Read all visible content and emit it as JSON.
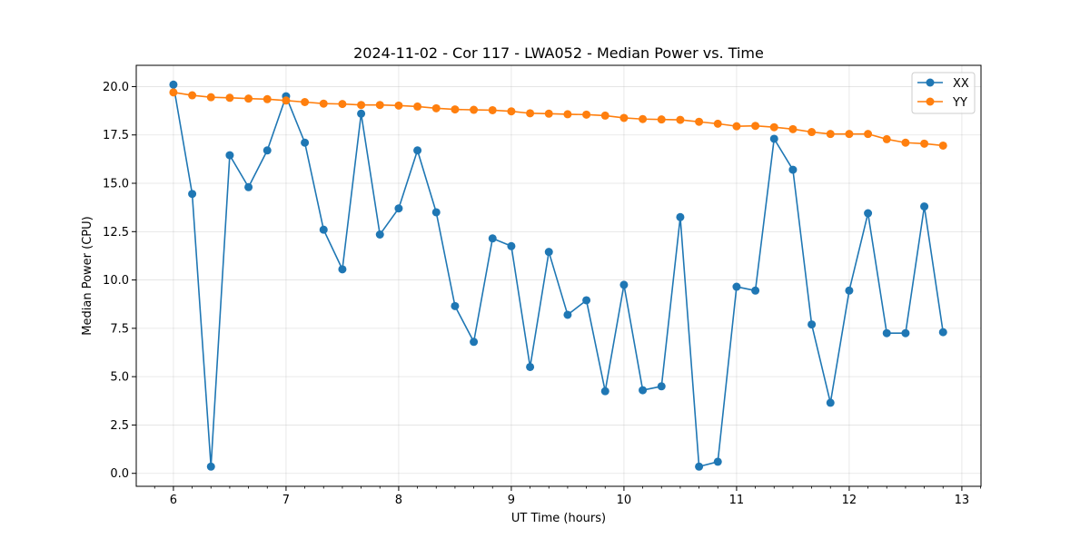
{
  "chart_data": {
    "type": "line",
    "title": "2024-11-02 - Cor 117 - LWA052 - Median Power vs. Time",
    "xlabel": "UT Time (hours)",
    "ylabel": "Median Power (CPU)",
    "xlim": [
      5.67,
      13.17
    ],
    "ylim": [
      -0.67,
      21.1
    ],
    "grid": true,
    "legend_position": "upper-right",
    "xticks": [
      6,
      7,
      8,
      9,
      10,
      11,
      12,
      13
    ],
    "xtick_labels": [
      "6",
      "7",
      "8",
      "9",
      "10",
      "11",
      "12",
      "13"
    ],
    "yticks": [
      0,
      2.5,
      5,
      7.5,
      10,
      12.5,
      15,
      17.5,
      20
    ],
    "ytick_labels": [
      "0.0",
      "2.5",
      "5.0",
      "7.5",
      "10.0",
      "12.5",
      "15.0",
      "17.5",
      "20.0"
    ],
    "x": [
      6.0,
      6.1667,
      6.3333,
      6.5,
      6.6667,
      6.8333,
      7.0,
      7.1667,
      7.3333,
      7.5,
      7.6667,
      7.8333,
      8.0,
      8.1667,
      8.3333,
      8.5,
      8.6667,
      8.8333,
      9.0,
      9.1667,
      9.3333,
      9.5,
      9.6667,
      9.8333,
      10.0,
      10.1667,
      10.3333,
      10.5,
      10.6667,
      10.8333,
      11.0,
      11.1667,
      11.3333,
      11.5,
      11.6667,
      11.8333,
      12.0,
      12.1667,
      12.3333,
      12.5,
      12.6667,
      12.8333
    ],
    "series": [
      {
        "name": "XX",
        "color": "#1f77b4",
        "values": [
          20.1,
          14.45,
          0.35,
          16.45,
          14.8,
          16.7,
          19.5,
          17.1,
          12.6,
          10.55,
          18.6,
          12.35,
          13.7,
          16.7,
          13.5,
          8.65,
          6.8,
          12.15,
          11.75,
          5.5,
          11.45,
          8.2,
          8.95,
          4.25,
          9.75,
          4.3,
          4.5,
          13.25,
          0.35,
          0.6,
          9.65,
          9.45,
          17.3,
          15.7,
          7.7,
          3.65,
          9.45,
          13.45,
          7.25,
          7.25,
          13.8,
          7.3
        ]
      },
      {
        "name": "YY",
        "color": "#ff7f0e",
        "values": [
          19.7,
          19.55,
          19.45,
          19.42,
          19.38,
          19.35,
          19.28,
          19.2,
          19.12,
          19.1,
          19.05,
          19.05,
          19.02,
          18.97,
          18.88,
          18.82,
          18.8,
          18.78,
          18.72,
          18.62,
          18.6,
          18.57,
          18.55,
          18.5,
          18.38,
          18.32,
          18.3,
          18.28,
          18.18,
          18.08,
          17.95,
          17.97,
          17.9,
          17.8,
          17.65,
          17.55,
          17.55,
          17.55,
          17.28,
          17.1,
          17.05,
          16.95
        ]
      }
    ]
  }
}
